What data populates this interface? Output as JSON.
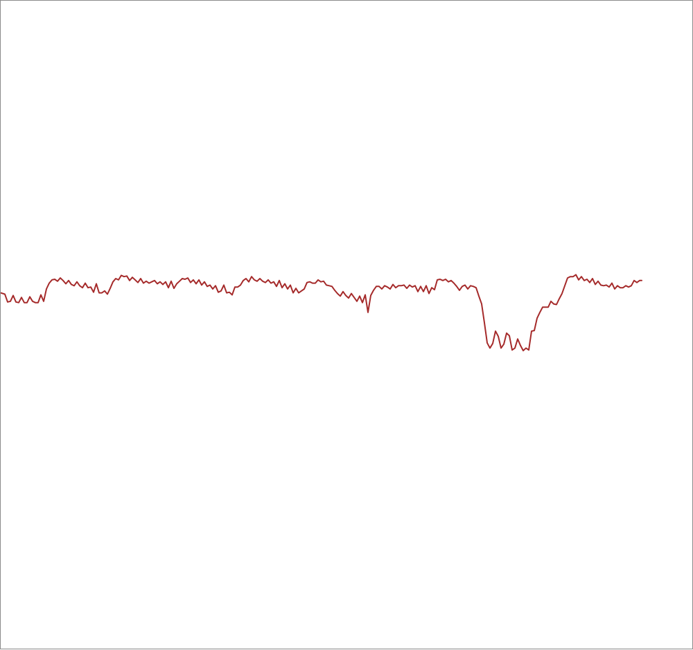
{
  "chart_data": {
    "type": "line",
    "title": "",
    "xlabel": "",
    "ylabel": "",
    "ylim": [
      0,
      1
    ],
    "grid": false,
    "legend": "none",
    "series": [
      {
        "color": "#a52a2a",
        "points": [
          [
            0,
            0.55
          ],
          [
            6,
            0.548
          ],
          [
            10,
            0.536
          ],
          [
            14,
            0.537
          ],
          [
            18,
            0.546
          ],
          [
            22,
            0.536
          ],
          [
            26,
            0.535
          ],
          [
            30,
            0.543
          ],
          [
            34,
            0.535
          ],
          [
            38,
            0.535
          ],
          [
            42,
            0.544
          ],
          [
            46,
            0.537
          ],
          [
            50,
            0.535
          ],
          [
            54,
            0.535
          ],
          [
            58,
            0.547
          ],
          [
            62,
            0.537
          ],
          [
            66,
            0.556
          ],
          [
            70,
            0.565
          ],
          [
            74,
            0.57
          ],
          [
            78,
            0.571
          ],
          [
            82,
            0.568
          ],
          [
            86,
            0.573
          ],
          [
            90,
            0.569
          ],
          [
            94,
            0.564
          ],
          [
            98,
            0.569
          ],
          [
            102,
            0.563
          ],
          [
            106,
            0.561
          ],
          [
            110,
            0.567
          ],
          [
            114,
            0.561
          ],
          [
            118,
            0.558
          ],
          [
            122,
            0.565
          ],
          [
            126,
            0.558
          ],
          [
            130,
            0.559
          ],
          [
            134,
            0.551
          ],
          [
            138,
            0.564
          ],
          [
            142,
            0.55
          ],
          [
            146,
            0.55
          ],
          [
            150,
            0.553
          ],
          [
            154,
            0.548
          ],
          [
            158,
            0.557
          ],
          [
            162,
            0.567
          ],
          [
            166,
            0.572
          ],
          [
            170,
            0.57
          ],
          [
            174,
            0.577
          ],
          [
            178,
            0.575
          ],
          [
            182,
            0.576
          ],
          [
            186,
            0.569
          ],
          [
            190,
            0.574
          ],
          [
            194,
            0.57
          ],
          [
            198,
            0.566
          ],
          [
            202,
            0.572
          ],
          [
            206,
            0.565
          ],
          [
            210,
            0.568
          ],
          [
            214,
            0.565
          ],
          [
            218,
            0.567
          ],
          [
            222,
            0.569
          ],
          [
            226,
            0.564
          ],
          [
            230,
            0.567
          ],
          [
            234,
            0.563
          ],
          [
            238,
            0.567
          ],
          [
            242,
            0.558
          ],
          [
            246,
            0.568
          ],
          [
            250,
            0.557
          ],
          [
            254,
            0.564
          ],
          [
            258,
            0.568
          ],
          [
            262,
            0.572
          ],
          [
            266,
            0.571
          ],
          [
            270,
            0.573
          ],
          [
            274,
            0.566
          ],
          [
            278,
            0.57
          ],
          [
            282,
            0.564
          ],
          [
            286,
            0.57
          ],
          [
            290,
            0.562
          ],
          [
            294,
            0.567
          ],
          [
            298,
            0.56
          ],
          [
            302,
            0.562
          ],
          [
            306,
            0.556
          ],
          [
            310,
            0.561
          ],
          [
            314,
            0.551
          ],
          [
            318,
            0.553
          ],
          [
            322,
            0.562
          ],
          [
            326,
            0.55
          ],
          [
            330,
            0.551
          ],
          [
            334,
            0.547
          ],
          [
            338,
            0.559
          ],
          [
            342,
            0.559
          ],
          [
            346,
            0.562
          ],
          [
            350,
            0.569
          ],
          [
            354,
            0.572
          ],
          [
            358,
            0.567
          ],
          [
            362,
            0.575
          ],
          [
            366,
            0.57
          ],
          [
            370,
            0.568
          ],
          [
            374,
            0.572
          ],
          [
            378,
            0.568
          ],
          [
            382,
            0.566
          ],
          [
            386,
            0.57
          ],
          [
            390,
            0.565
          ],
          [
            394,
            0.567
          ],
          [
            398,
            0.56
          ],
          [
            402,
            0.569
          ],
          [
            406,
            0.558
          ],
          [
            410,
            0.564
          ],
          [
            414,
            0.556
          ],
          [
            418,
            0.562
          ],
          [
            422,
            0.55
          ],
          [
            426,
            0.557
          ],
          [
            430,
            0.55
          ],
          [
            434,
            0.553
          ],
          [
            438,
            0.556
          ],
          [
            442,
            0.566
          ],
          [
            446,
            0.567
          ],
          [
            450,
            0.565
          ],
          [
            454,
            0.565
          ],
          [
            458,
            0.57
          ],
          [
            462,
            0.567
          ],
          [
            466,
            0.568
          ],
          [
            470,
            0.562
          ],
          [
            474,
            0.561
          ],
          [
            478,
            0.56
          ],
          [
            482,
            0.554
          ],
          [
            486,
            0.549
          ],
          [
            490,
            0.545
          ],
          [
            494,
            0.552
          ],
          [
            498,
            0.546
          ],
          [
            502,
            0.542
          ],
          [
            506,
            0.549
          ],
          [
            510,
            0.543
          ],
          [
            514,
            0.537
          ],
          [
            518,
            0.545
          ],
          [
            522,
            0.535
          ],
          [
            526,
            0.547
          ],
          [
            530,
            0.52
          ],
          [
            534,
            0.546
          ],
          [
            538,
            0.554
          ],
          [
            542,
            0.56
          ],
          [
            546,
            0.56
          ],
          [
            550,
            0.556
          ],
          [
            554,
            0.561
          ],
          [
            558,
            0.559
          ],
          [
            562,
            0.556
          ],
          [
            566,
            0.563
          ],
          [
            570,
            0.558
          ],
          [
            574,
            0.561
          ],
          [
            578,
            0.561
          ],
          [
            582,
            0.562
          ],
          [
            586,
            0.557
          ],
          [
            590,
            0.562
          ],
          [
            594,
            0.559
          ],
          [
            598,
            0.561
          ],
          [
            602,
            0.552
          ],
          [
            606,
            0.56
          ],
          [
            610,
            0.552
          ],
          [
            614,
            0.561
          ],
          [
            618,
            0.549
          ],
          [
            622,
            0.558
          ],
          [
            626,
            0.555
          ],
          [
            630,
            0.57
          ],
          [
            634,
            0.571
          ],
          [
            638,
            0.569
          ],
          [
            642,
            0.571
          ],
          [
            646,
            0.567
          ],
          [
            650,
            0.569
          ],
          [
            654,
            0.565
          ],
          [
            658,
            0.56
          ],
          [
            662,
            0.554
          ],
          [
            666,
            0.56
          ],
          [
            670,
            0.562
          ],
          [
            674,
            0.556
          ],
          [
            678,
            0.561
          ],
          [
            682,
            0.56
          ],
          [
            686,
            0.558
          ],
          [
            690,
            0.545
          ],
          [
            694,
            0.533
          ],
          [
            698,
            0.504
          ],
          [
            702,
            0.473
          ],
          [
            706,
            0.465
          ],
          [
            710,
            0.472
          ],
          [
            714,
            0.491
          ],
          [
            718,
            0.483
          ],
          [
            722,
            0.465
          ],
          [
            726,
            0.471
          ],
          [
            730,
            0.488
          ],
          [
            734,
            0.484
          ],
          [
            738,
            0.462
          ],
          [
            742,
            0.465
          ],
          [
            746,
            0.479
          ],
          [
            750,
            0.469
          ],
          [
            754,
            0.461
          ],
          [
            758,
            0.465
          ],
          [
            762,
            0.462
          ],
          [
            766,
            0.491
          ],
          [
            770,
            0.492
          ],
          [
            774,
            0.511
          ],
          [
            778,
            0.52
          ],
          [
            782,
            0.528
          ],
          [
            786,
            0.528
          ],
          [
            790,
            0.528
          ],
          [
            794,
            0.537
          ],
          [
            798,
            0.533
          ],
          [
            802,
            0.532
          ],
          [
            806,
            0.541
          ],
          [
            810,
            0.549
          ],
          [
            814,
            0.561
          ],
          [
            818,
            0.573
          ],
          [
            822,
            0.575
          ],
          [
            826,
            0.575
          ],
          [
            830,
            0.578
          ],
          [
            834,
            0.57
          ],
          [
            838,
            0.575
          ],
          [
            842,
            0.569
          ],
          [
            846,
            0.571
          ],
          [
            850,
            0.566
          ],
          [
            854,
            0.572
          ],
          [
            858,
            0.563
          ],
          [
            862,
            0.568
          ],
          [
            866,
            0.562
          ],
          [
            870,
            0.561
          ],
          [
            874,
            0.562
          ],
          [
            878,
            0.559
          ],
          [
            882,
            0.565
          ],
          [
            886,
            0.556
          ],
          [
            890,
            0.561
          ],
          [
            894,
            0.558
          ],
          [
            898,
            0.558
          ],
          [
            902,
            0.561
          ],
          [
            906,
            0.559
          ],
          [
            910,
            0.561
          ],
          [
            914,
            0.569
          ],
          [
            918,
            0.566
          ],
          [
            922,
            0.569
          ],
          [
            925,
            0.569
          ]
        ]
      }
    ]
  }
}
